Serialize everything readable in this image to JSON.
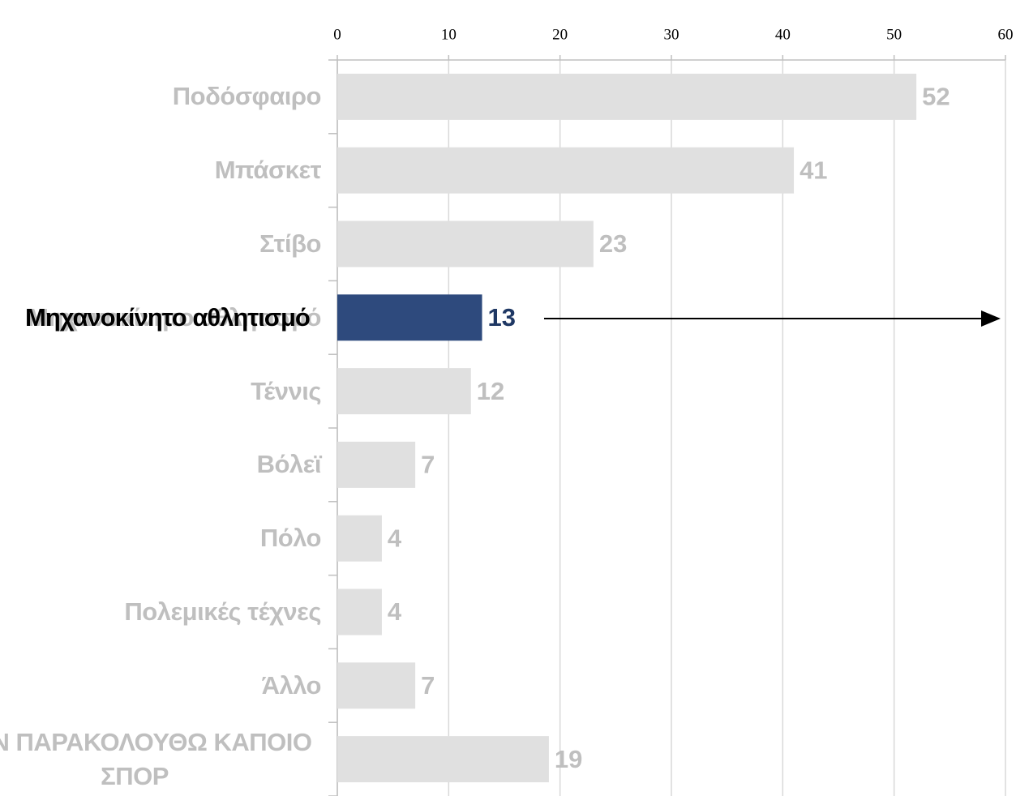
{
  "chart_data": {
    "type": "bar",
    "orientation": "horizontal",
    "categories": [
      "Ποδόσφαιρο",
      "Μπάσκετ",
      "Στίβο",
      "Μηχανοκίνητο αθλητισμό",
      "Τέννις",
      "Βόλεϊ",
      "Πόλο",
      "Πολεμικές τέχνες",
      "Άλλο",
      "ΔΕΝ ΠΑΡΑΚΟΛΟΥΘΩ ΚΑΠΟΙΟ ΣΠΟΡ"
    ],
    "values": [
      52,
      41,
      23,
      13,
      12,
      7,
      4,
      4,
      7,
      19
    ],
    "colors": [
      "#e0e0e0",
      "#e0e0e0",
      "#e0e0e0",
      "#2e4a7d",
      "#e0e0e0",
      "#e0e0e0",
      "#e0e0e0",
      "#e0e0e0",
      "#e0e0e0",
      "#e0e0e0"
    ],
    "label_colors": [
      "#bfbfbf",
      "#bfbfbf",
      "#bfbfbf",
      "#1f3864",
      "#bfbfbf",
      "#bfbfbf",
      "#bfbfbf",
      "#bfbfbf",
      "#bfbfbf",
      "#bfbfbf"
    ],
    "xlim": [
      0,
      60
    ],
    "xticks": [
      0,
      10,
      20,
      30,
      40,
      50,
      60
    ],
    "grid": true
  }
}
